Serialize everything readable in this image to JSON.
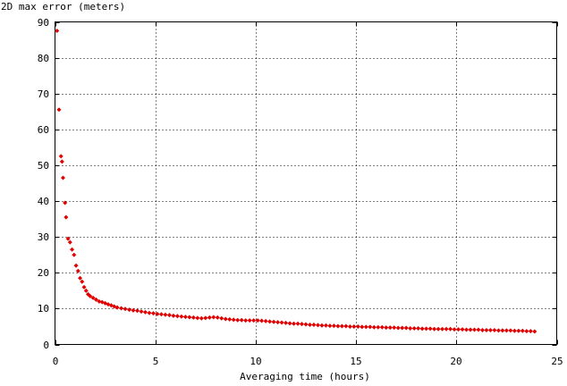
{
  "chart_data": {
    "type": "scatter",
    "ylabel": "2D max error (meters)",
    "xlabel": "Averaging time (hours)",
    "xlim": [
      0,
      25
    ],
    "ylim": [
      0,
      90
    ],
    "x_ticks": [
      "0",
      "5",
      "10",
      "15",
      "20",
      "25"
    ],
    "y_ticks": [
      "0",
      "10",
      "20",
      "30",
      "40",
      "50",
      "60",
      "70",
      "80",
      "90"
    ],
    "grid": true,
    "marker_color": "#e00000",
    "series": [
      {
        "points": [
          [
            0.1,
            87.5
          ],
          [
            0.2,
            65.5
          ],
          [
            0.3,
            52.5
          ],
          [
            0.35,
            51
          ],
          [
            0.4,
            46.5
          ],
          [
            0.5,
            39.5
          ],
          [
            0.55,
            35.5
          ],
          [
            0.65,
            29.5
          ],
          [
            0.75,
            28.5
          ],
          [
            0.85,
            26.5
          ],
          [
            0.95,
            25
          ],
          [
            1.05,
            22
          ],
          [
            1.15,
            20.5
          ],
          [
            1.25,
            18.5
          ],
          [
            1.35,
            17.5
          ],
          [
            1.45,
            16
          ],
          [
            1.55,
            15
          ],
          [
            1.65,
            14
          ],
          [
            1.75,
            13.5
          ],
          [
            1.9,
            13
          ],
          [
            2.05,
            12.5
          ],
          [
            2.2,
            12
          ],
          [
            2.35,
            11.8
          ],
          [
            2.5,
            11.5
          ],
          [
            2.65,
            11.2
          ],
          [
            2.8,
            10.9
          ],
          [
            2.95,
            10.6
          ],
          [
            3.1,
            10.3
          ],
          [
            3.3,
            10.1
          ],
          [
            3.5,
            9.9
          ],
          [
            3.7,
            9.7
          ],
          [
            3.9,
            9.5
          ],
          [
            4.1,
            9.4
          ],
          [
            4.3,
            9.2
          ],
          [
            4.5,
            9.0
          ],
          [
            4.7,
            8.8
          ],
          [
            4.9,
            8.7
          ],
          [
            5.1,
            8.5
          ],
          [
            5.3,
            8.4
          ],
          [
            5.5,
            8.3
          ],
          [
            5.7,
            8.2
          ],
          [
            5.9,
            8.0
          ],
          [
            6.1,
            7.9
          ],
          [
            6.3,
            7.8
          ],
          [
            6.5,
            7.7
          ],
          [
            6.7,
            7.6
          ],
          [
            6.9,
            7.5
          ],
          [
            7.1,
            7.4
          ],
          [
            7.3,
            7.3
          ],
          [
            7.5,
            7.4
          ],
          [
            7.7,
            7.5
          ],
          [
            7.9,
            7.6
          ],
          [
            8.1,
            7.5
          ],
          [
            8.3,
            7.3
          ],
          [
            8.5,
            7.1
          ],
          [
            8.7,
            7.0
          ],
          [
            8.9,
            6.9
          ],
          [
            9.1,
            6.8
          ],
          [
            9.3,
            6.8
          ],
          [
            9.5,
            6.7
          ],
          [
            9.7,
            6.7
          ],
          [
            9.9,
            6.7
          ],
          [
            10.1,
            6.7
          ],
          [
            10.3,
            6.6
          ],
          [
            10.5,
            6.5
          ],
          [
            10.7,
            6.4
          ],
          [
            10.9,
            6.3
          ],
          [
            11.1,
            6.2
          ],
          [
            11.3,
            6.1
          ],
          [
            11.5,
            6.0
          ],
          [
            11.7,
            5.9
          ],
          [
            11.9,
            5.8
          ],
          [
            12.1,
            5.8
          ],
          [
            12.3,
            5.7
          ],
          [
            12.5,
            5.6
          ],
          [
            12.7,
            5.5
          ],
          [
            12.9,
            5.5
          ],
          [
            13.1,
            5.4
          ],
          [
            13.3,
            5.3
          ],
          [
            13.5,
            5.3
          ],
          [
            13.7,
            5.2
          ],
          [
            13.9,
            5.2
          ],
          [
            14.1,
            5.1
          ],
          [
            14.3,
            5.1
          ],
          [
            14.5,
            5.1
          ],
          [
            14.7,
            5.0
          ],
          [
            14.9,
            5.0
          ],
          [
            15.1,
            5.0
          ],
          [
            15.3,
            4.9
          ],
          [
            15.5,
            4.9
          ],
          [
            15.7,
            4.9
          ],
          [
            15.9,
            4.8
          ],
          [
            16.1,
            4.8
          ],
          [
            16.3,
            4.8
          ],
          [
            16.5,
            4.7
          ],
          [
            16.7,
            4.7
          ],
          [
            16.9,
            4.7
          ],
          [
            17.1,
            4.6
          ],
          [
            17.3,
            4.6
          ],
          [
            17.5,
            4.6
          ],
          [
            17.7,
            4.5
          ],
          [
            17.9,
            4.5
          ],
          [
            18.1,
            4.5
          ],
          [
            18.3,
            4.4
          ],
          [
            18.5,
            4.4
          ],
          [
            18.7,
            4.4
          ],
          [
            18.9,
            4.3
          ],
          [
            19.1,
            4.3
          ],
          [
            19.3,
            4.3
          ],
          [
            19.5,
            4.3
          ],
          [
            19.7,
            4.3
          ],
          [
            19.9,
            4.2
          ],
          [
            20.1,
            4.2
          ],
          [
            20.3,
            4.2
          ],
          [
            20.5,
            4.1
          ],
          [
            20.7,
            4.1
          ],
          [
            20.9,
            4.1
          ],
          [
            21.1,
            4.1
          ],
          [
            21.3,
            4.0
          ],
          [
            21.5,
            4.0
          ],
          [
            21.7,
            4.0
          ],
          [
            21.9,
            4.0
          ],
          [
            22.1,
            3.9
          ],
          [
            22.3,
            3.9
          ],
          [
            22.5,
            3.9
          ],
          [
            22.7,
            3.9
          ],
          [
            22.9,
            3.8
          ],
          [
            23.1,
            3.8
          ],
          [
            23.3,
            3.8
          ],
          [
            23.5,
            3.7
          ],
          [
            23.7,
            3.7
          ],
          [
            23.9,
            3.6
          ]
        ]
      }
    ]
  }
}
